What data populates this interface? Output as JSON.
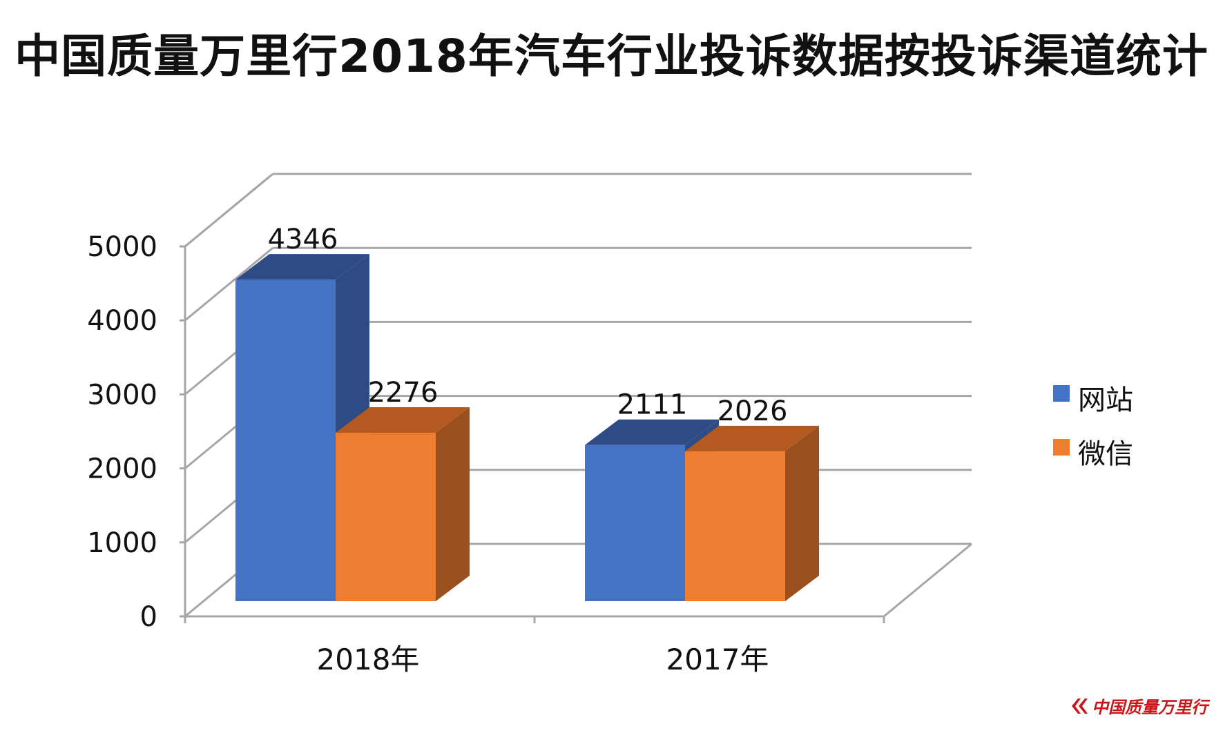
{
  "chart_data": {
    "type": "bar",
    "title": "中国质量万里行2018年汽车行业投诉数据按投诉渠道统计",
    "categories": [
      "2018年",
      "2017年"
    ],
    "series": [
      {
        "name": "网站",
        "values": [
          4346,
          2111
        ],
        "color": "#4472C4",
        "side_color": "#2F4B85",
        "top_color": "#2F4B85"
      },
      {
        "name": "微信",
        "values": [
          2276,
          2026
        ],
        "color": "#ED7D31",
        "side_color": "#9A4F1E",
        "top_color": "#B45A20"
      }
    ],
    "ylim": [
      0,
      5000
    ],
    "yticks": [
      "0",
      "1000",
      "2000",
      "3000",
      "4000",
      "5000"
    ],
    "xlabel": "",
    "ylabel": "",
    "grid": true,
    "legend_position": "right",
    "three_d": true
  },
  "watermark": {
    "text": "中国质量万里行",
    "icon": "double-chevron-logo-icon",
    "color": "#c9161d"
  }
}
